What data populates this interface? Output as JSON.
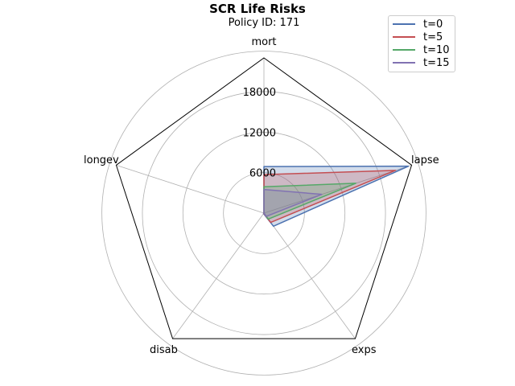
{
  "chart_data": {
    "type": "radar",
    "title": "SCR Life Risks",
    "subtitle": "Policy ID: 171",
    "axes": [
      "mort",
      "lapse",
      "exps",
      "disab",
      "longev"
    ],
    "rlim": [
      0,
      23000
    ],
    "r_ticks": [
      6000,
      12000,
      18000
    ],
    "r_tick_labels": [
      "6000",
      "12000",
      "18000"
    ],
    "grid": true,
    "legend": "top-right",
    "series": [
      {
        "name": "t=0",
        "color": "#4c72b0",
        "values": [
          6900,
          22500,
          2400,
          100,
          0
        ]
      },
      {
        "name": "t=5",
        "color": "#c44e52",
        "values": [
          5700,
          20500,
          1700,
          50,
          0
        ]
      },
      {
        "name": "t=10",
        "color": "#55a868",
        "values": [
          3900,
          14300,
          1100,
          0,
          0
        ]
      },
      {
        "name": "t=15",
        "color": "#8172b2",
        "values": [
          3500,
          9000,
          600,
          0,
          0
        ]
      }
    ]
  }
}
